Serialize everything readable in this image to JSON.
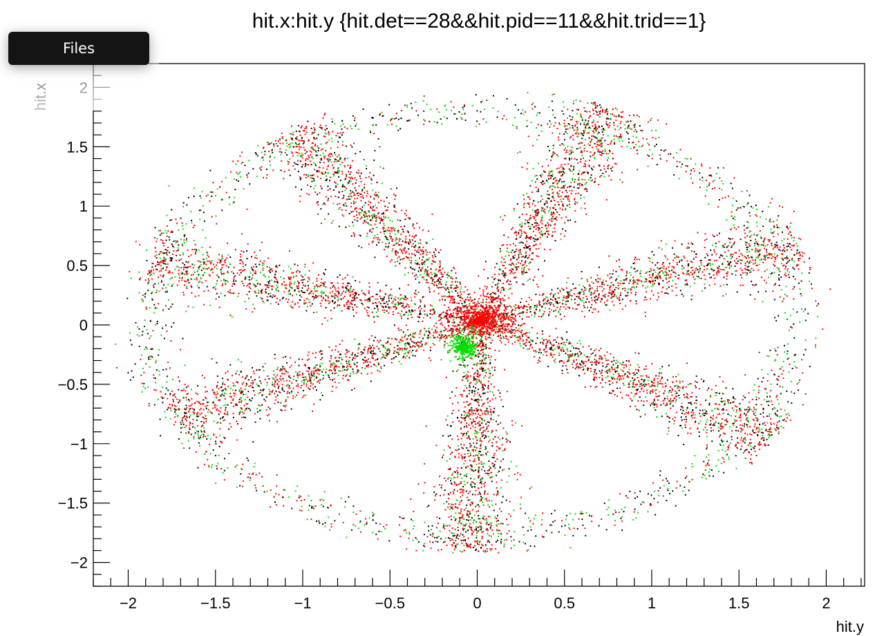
{
  "overlay": {
    "files_label": "Files"
  },
  "chart_data": {
    "type": "scatter",
    "title": "hit.x:hit.y {hit.det==28&&hit.pid==11&&hit.trid==1}",
    "xlabel": "hit.y",
    "ylabel": "hit.x",
    "xlim": [
      -2.2,
      2.22
    ],
    "ylim": [
      -2.2,
      2.2
    ],
    "xticks": [
      -2,
      -1.5,
      -1,
      -0.5,
      0,
      0.5,
      1,
      1.5,
      2
    ],
    "xtick_labels": [
      "−2",
      "−1.5",
      "−1",
      "−0.5",
      "0",
      "0.5",
      "1",
      "1.5",
      "2"
    ],
    "yticks": [
      -2,
      -1.5,
      -1,
      -0.5,
      0,
      0.5,
      1,
      1.5,
      2
    ],
    "ytick_labels": [
      "−2",
      "−1.5",
      "−1",
      "−0.5",
      "0",
      "0.5",
      "1",
      "1.5",
      "2"
    ],
    "grid": false,
    "colors": {
      "series_black": "#000000",
      "series_red": "#ff0000",
      "series_green": "#00dd00",
      "frame": "#000000"
    },
    "distribution": {
      "description_of_visible_structure": "",
      "ring": {
        "center": [
          -0.05,
          0.02
        ],
        "radius_x": 1.85,
        "radius_y": 1.78,
        "thickness": 0.18
      },
      "arms_angles_deg": [
        20,
        68,
        125,
        165,
        205,
        268,
        330
      ],
      "arm_length": 1.95,
      "core": {
        "center": [
          0.02,
          0.04
        ],
        "radius": 0.22
      },
      "green_blob": {
        "center": [
          -0.08,
          -0.18
        ],
        "radius": 0.12
      }
    }
  }
}
